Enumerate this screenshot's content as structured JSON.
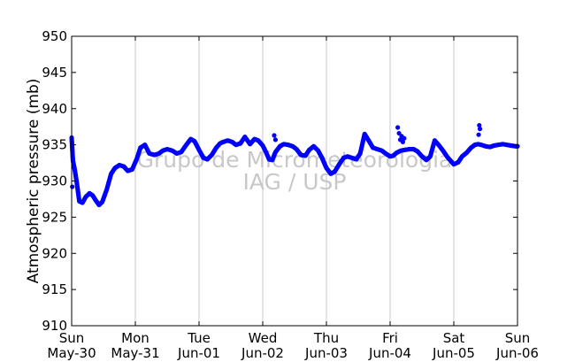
{
  "chart_data": {
    "type": "scatter",
    "title": "",
    "ylabel": "Atmospheric pressure (mb)",
    "xlabel": "",
    "ylim": [
      910,
      950
    ],
    "yticks": [
      910,
      915,
      920,
      925,
      930,
      935,
      940,
      945,
      950
    ],
    "xlim": [
      0,
      7
    ],
    "xticks": [
      {
        "day": 0,
        "top": "Sun",
        "bottom": "May-30"
      },
      {
        "day": 1,
        "top": "Mon",
        "bottom": "May-31"
      },
      {
        "day": 2,
        "top": "Tue",
        "bottom": "Jun-01"
      },
      {
        "day": 3,
        "top": "Wed",
        "bottom": "Jun-02"
      },
      {
        "day": 4,
        "top": "Thu",
        "bottom": "Jun-03"
      },
      {
        "day": 5,
        "top": "Fri",
        "bottom": "Jun-04"
      },
      {
        "day": 6,
        "top": "Sat",
        "bottom": "Jun-05"
      },
      {
        "day": 7,
        "top": "Sun",
        "bottom": "Jun-06"
      }
    ],
    "grid": "vertical",
    "color": "#0000ff",
    "watermark": [
      "Grupo de Micrometeorologia",
      "IAG / USP"
    ],
    "series": [
      {
        "x": [
          0,
          0.02,
          0.05,
          0.08,
          0.12,
          0.17,
          0.22,
          0.28,
          0.33,
          0.38,
          0.43,
          0.48,
          0.55,
          0.62,
          0.68,
          0.75,
          0.82,
          0.88,
          0.95,
          1.02,
          1.08,
          1.15,
          1.22,
          1.3,
          1.37,
          1.43,
          1.5,
          1.58,
          1.65,
          1.72,
          1.8,
          1.87,
          1.93,
          2.0,
          2.07,
          2.13,
          2.2,
          2.27,
          2.33,
          2.38,
          2.45,
          2.52,
          2.58,
          2.65,
          2.72,
          2.8,
          2.87,
          2.93,
          3.0,
          3.05,
          3.1,
          3.15,
          3.2,
          3.27,
          3.33,
          3.4,
          3.47,
          3.53,
          3.6,
          3.67,
          3.73,
          3.8,
          3.87,
          3.93,
          4.0,
          4.07,
          4.13,
          4.2,
          4.27,
          4.33,
          4.4,
          4.47,
          4.53,
          4.6,
          4.67,
          4.73,
          4.8,
          4.87,
          4.93,
          5.0,
          5.05,
          5.1,
          5.17,
          5.23,
          5.3,
          5.37,
          5.43,
          5.5,
          5.57,
          5.63,
          5.7,
          5.77,
          5.83,
          5.9,
          6.0,
          6.07,
          6.13,
          6.2,
          6.27,
          6.33,
          6.38,
          6.43,
          6.5,
          6.57,
          6.63,
          6.7,
          6.77,
          6.83,
          6.9,
          6.97,
          7.0
        ],
        "y": [
          936.0,
          932.8,
          931.5,
          929.8,
          927.2,
          927.0,
          927.8,
          928.3,
          928.0,
          927.3,
          926.7,
          927.1,
          928.8,
          931.0,
          931.8,
          932.2,
          932.0,
          931.4,
          931.6,
          933.0,
          934.6,
          935.0,
          933.8,
          933.6,
          933.8,
          934.2,
          934.4,
          934.2,
          933.8,
          934.0,
          935.0,
          935.8,
          935.5,
          934.3,
          933.2,
          933.0,
          933.6,
          934.6,
          935.2,
          935.4,
          935.6,
          935.4,
          935.0,
          935.2,
          936.1,
          935.1,
          935.8,
          935.6,
          934.9,
          934.0,
          933.0,
          932.9,
          934.0,
          934.8,
          935.1,
          935.0,
          934.8,
          934.4,
          933.6,
          933.5,
          934.3,
          934.8,
          934.2,
          933.2,
          931.8,
          931.0,
          931.3,
          932.3,
          933.2,
          933.4,
          933.2,
          933.0,
          933.8,
          936.5,
          935.5,
          934.6,
          934.4,
          934.2,
          933.8,
          933.4,
          933.5,
          933.9,
          934.2,
          934.3,
          934.4,
          934.4,
          934.1,
          933.4,
          932.9,
          933.4,
          935.6,
          934.9,
          934.2,
          933.3,
          932.3,
          932.6,
          933.4,
          933.9,
          934.6,
          935.0,
          935.1,
          935.0,
          934.8,
          934.7,
          934.9,
          935.0,
          935.1,
          935.0,
          934.9,
          934.8,
          934.8
        ]
      }
    ],
    "spikes": [
      {
        "x": 0.01,
        "y": 929.2
      },
      {
        "x": 0.03,
        "y": 932.0
      },
      {
        "x": 5.12,
        "y": 937.4
      },
      {
        "x": 5.14,
        "y": 936.6
      },
      {
        "x": 5.18,
        "y": 936.2
      },
      {
        "x": 5.16,
        "y": 935.7
      },
      {
        "x": 5.2,
        "y": 935.4
      },
      {
        "x": 5.22,
        "y": 935.9
      },
      {
        "x": 6.4,
        "y": 937.7
      },
      {
        "x": 6.41,
        "y": 937.2
      },
      {
        "x": 6.39,
        "y": 936.4
      },
      {
        "x": 3.18,
        "y": 936.3
      },
      {
        "x": 3.2,
        "y": 935.7
      }
    ]
  }
}
